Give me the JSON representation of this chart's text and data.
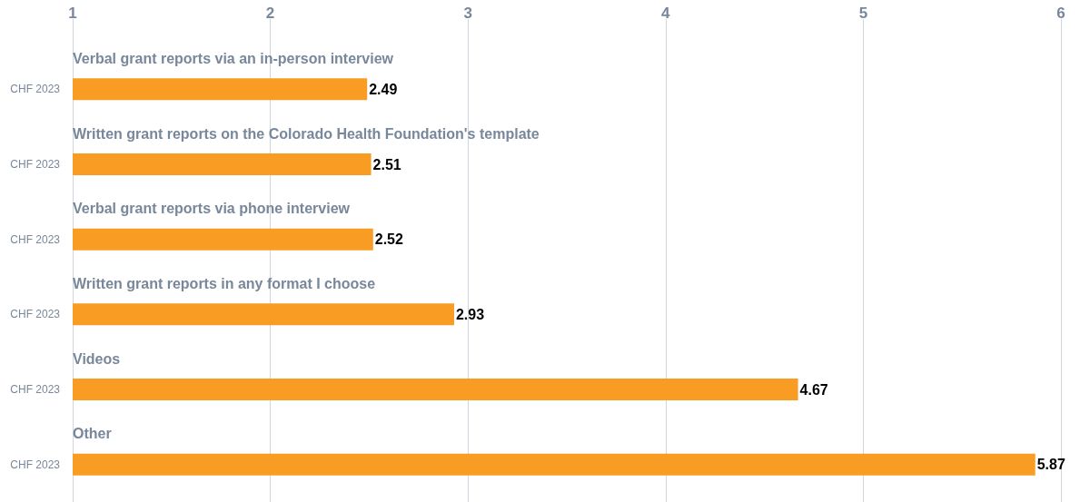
{
  "chart_data": {
    "type": "bar",
    "orientation": "horizontal",
    "categories": [
      "Verbal grant reports via an in-person interview",
      "Written grant reports on the Colorado Health Foundation's template",
      "Verbal grant reports via phone interview",
      "Written grant reports in any format I choose",
      "Videos",
      "Other"
    ],
    "series": [
      {
        "name": "CHF 2023",
        "color": "#f89c24",
        "values": [
          2.49,
          2.51,
          2.52,
          2.93,
          4.67,
          5.87
        ]
      }
    ],
    "xlim": [
      1,
      6
    ],
    "xticks": [
      1,
      2,
      3,
      4,
      5,
      6
    ],
    "grid": "x",
    "data_labels": true
  }
}
